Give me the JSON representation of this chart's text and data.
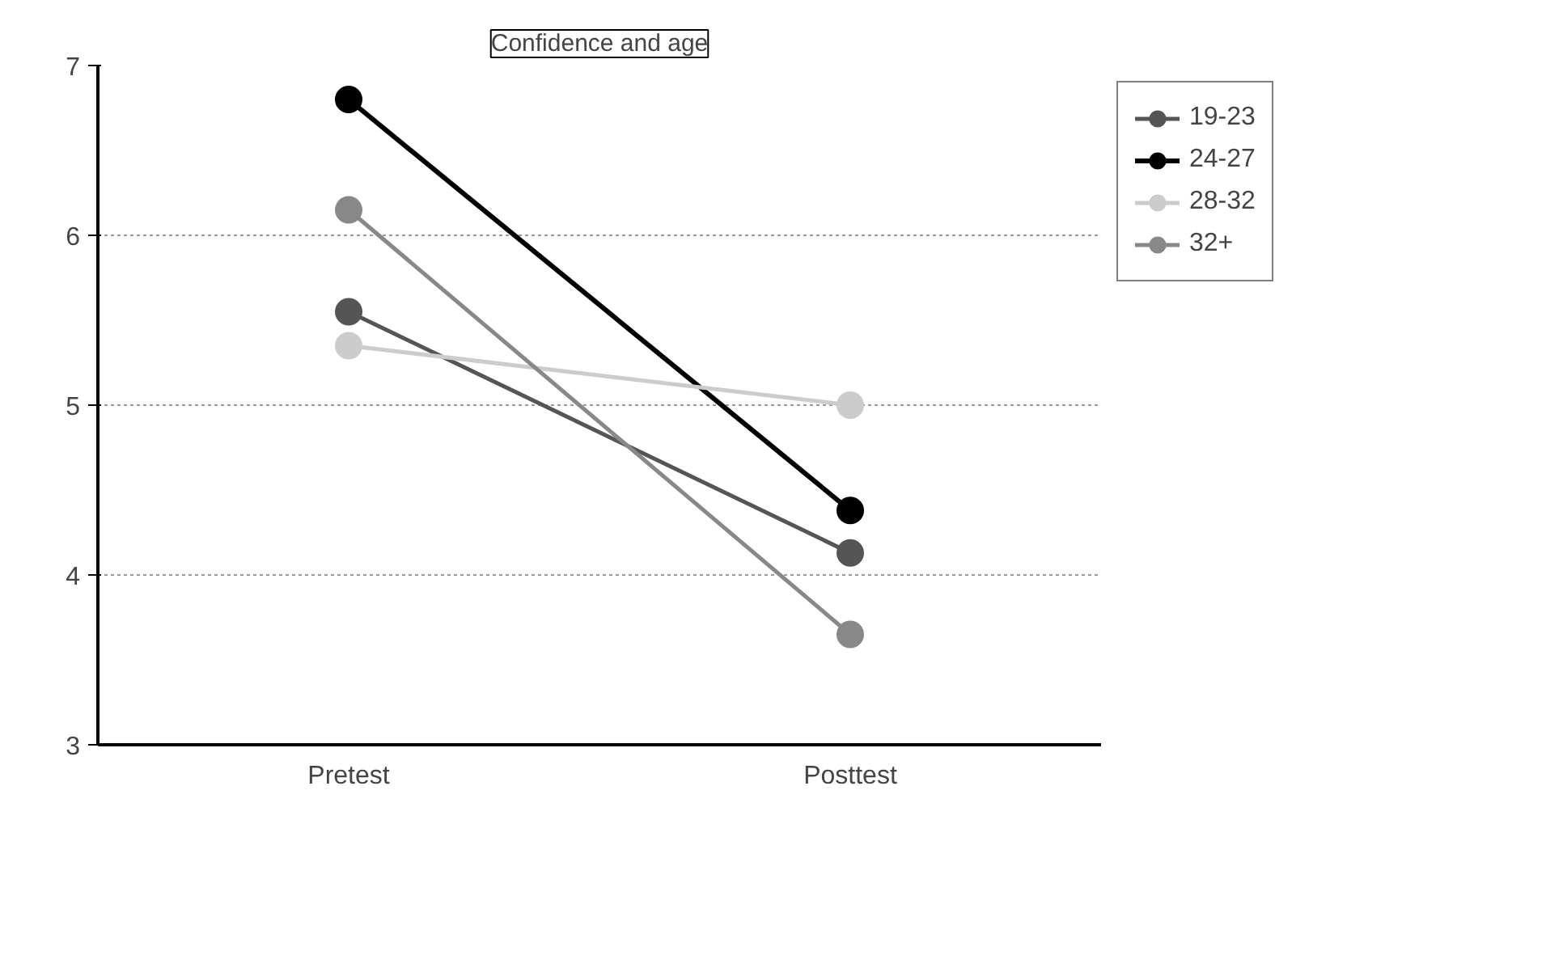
{
  "chart_data": {
    "type": "line",
    "title": "Confidence and age",
    "categories": [
      "Pretest",
      "Posttest"
    ],
    "series": [
      {
        "name": "19-23",
        "color": "#555555",
        "values": [
          5.55,
          4.13
        ]
      },
      {
        "name": "24-27",
        "color": "#000000",
        "values": [
          6.8,
          4.38
        ]
      },
      {
        "name": "28-32",
        "color": "#cccccc",
        "values": [
          5.35,
          5.0
        ]
      },
      {
        "name": "32+",
        "color": "#888888",
        "values": [
          6.15,
          3.65
        ]
      }
    ],
    "ylim": [
      3,
      7
    ],
    "yticks": [
      3,
      4,
      5,
      6,
      7
    ],
    "grid": "y",
    "legend": "right",
    "marker": "circle",
    "line_style": "solid"
  }
}
